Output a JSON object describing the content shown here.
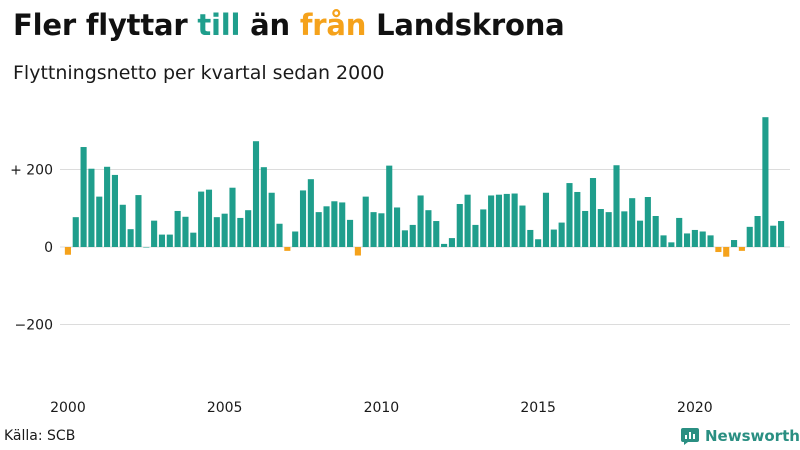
{
  "title": {
    "p1": "Fler flyttar ",
    "p2": "till",
    "p3": " än ",
    "p4": "från",
    "p5": " Landskrona"
  },
  "subtitle": "Flyttningsnetto per kvartal sedan 2000",
  "source": "Källa: SCB",
  "brand": "Newsworthy",
  "colors": {
    "positive": "#1f9e8c",
    "negative": "#f5a21b",
    "brand": "#2a8f82"
  },
  "chart_data": {
    "type": "bar",
    "title": "Fler flyttar till än från Landskrona",
    "subtitle": "Flyttningsnetto per kvartal sedan 2000",
    "x_tick_labels": [
      "2000",
      "2005",
      "2010",
      "2015",
      "2020"
    ],
    "y_tick_labels": [
      "+ 200",
      "0",
      "−200"
    ],
    "y_ticks": [
      200,
      0,
      -200
    ],
    "ylim": [
      -330,
      345
    ],
    "start_year": 2000,
    "quarters_per_year": 4,
    "values": [
      -20,
      77,
      258,
      202,
      130,
      207,
      186,
      109,
      46,
      134,
      0,
      68,
      32,
      32,
      93,
      78,
      37,
      143,
      148,
      77,
      86,
      153,
      75,
      95,
      273,
      206,
      140,
      60,
      -10,
      40,
      146,
      175,
      90,
      105,
      118,
      115,
      70,
      -22,
      130,
      90,
      87,
      210,
      102,
      43,
      57,
      133,
      95,
      67,
      8,
      23,
      111,
      135,
      57,
      97,
      133,
      135,
      137,
      138,
      107,
      44,
      20,
      140,
      45,
      63,
      165,
      142,
      93,
      178,
      98,
      90,
      211,
      92,
      126,
      68,
      129,
      80,
      30,
      12,
      75,
      35,
      44,
      40,
      30,
      -13,
      -25,
      18,
      -10,
      52,
      80,
      335,
      55,
      67
    ],
    "grid": true
  }
}
